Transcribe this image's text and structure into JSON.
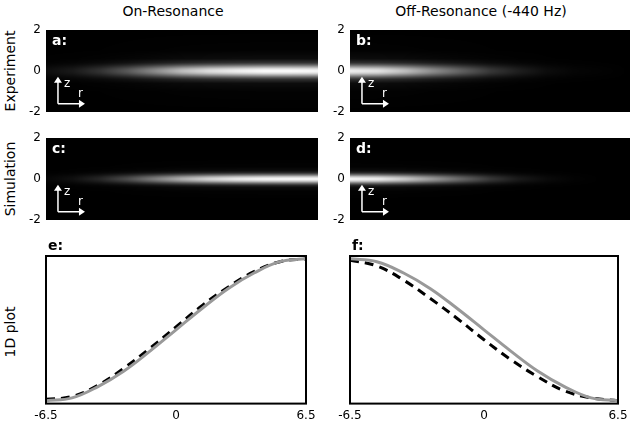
{
  "column_titles": [
    "On-Resonance",
    "Off-Resonance (-440 Hz)"
  ],
  "row_titles": [
    "Experiment",
    "Simulation",
    "1D plot"
  ],
  "chart_data": [
    {
      "type": "heatmap",
      "letter": "a:",
      "xlabel": "r",
      "ylabel": "z",
      "xlim": [
        -6.5,
        6.5
      ],
      "ylim": [
        -2,
        2
      ],
      "yticks": [
        -2,
        0,
        2
      ],
      "tick_labels": "y",
      "grid": false,
      "r_profile": {
        "r": [
          -6.5,
          -5.2,
          -3.9,
          -2.6,
          -1.3,
          0,
          1.3,
          2.6,
          3.9,
          5.2,
          6.5
        ],
        "intensity": [
          0.05,
          0.1,
          0.2,
          0.35,
          0.55,
          0.75,
          0.88,
          0.95,
          1,
          1,
          0.98
        ]
      },
      "z_profile": {
        "z": [
          -2,
          -1,
          -0.6,
          -0.4,
          -0.3,
          -0.2,
          -0.1,
          0,
          0.1,
          0.2,
          0.3,
          0.4,
          0.6,
          1,
          2
        ],
        "intensity": [
          0,
          0.01,
          0.05,
          0.2,
          0.4,
          0.66,
          0.9,
          1,
          0.9,
          0.66,
          0.4,
          0.2,
          0.05,
          0.01,
          0
        ]
      }
    },
    {
      "type": "heatmap",
      "letter": "b:",
      "xlabel": "r",
      "ylabel": "z",
      "xlim": [
        -6.5,
        6.5
      ],
      "ylim": [
        -2,
        2
      ],
      "yticks": [
        -2,
        0,
        2
      ],
      "tick_labels": "y",
      "grid": false,
      "r_profile": {
        "r": [
          -6.5,
          -5.2,
          -3.9,
          -2.6,
          -1.3,
          0,
          1.3,
          2.6,
          3.9,
          5.2,
          6.5
        ],
        "intensity": [
          0.95,
          0.9,
          0.75,
          0.55,
          0.38,
          0.22,
          0.12,
          0.05,
          0.02,
          0.01,
          0
        ]
      },
      "z_profile": {
        "z": [
          -2,
          -1,
          -0.6,
          -0.4,
          -0.3,
          -0.2,
          -0.1,
          0,
          0.1,
          0.2,
          0.3,
          0.4,
          0.6,
          1,
          2
        ],
        "intensity": [
          0,
          0.01,
          0.05,
          0.2,
          0.4,
          0.66,
          0.9,
          1,
          0.9,
          0.66,
          0.4,
          0.2,
          0.05,
          0.01,
          0
        ]
      }
    },
    {
      "type": "heatmap",
      "letter": "c:",
      "xlabel": "r",
      "ylabel": "z",
      "xlim": [
        -6.5,
        6.5
      ],
      "ylim": [
        -2,
        2
      ],
      "yticks": [
        -2,
        0,
        2
      ],
      "tick_labels": "y",
      "grid": false,
      "r_profile": {
        "r": [
          -6.5,
          -5.2,
          -3.9,
          -2.6,
          -1.3,
          0,
          1.3,
          2.6,
          3.9,
          5.2,
          6.5
        ],
        "intensity": [
          0.02,
          0.06,
          0.15,
          0.3,
          0.5,
          0.7,
          0.85,
          0.94,
          0.99,
          1,
          1
        ]
      },
      "z_profile": {
        "z": [
          -2,
          -1,
          -0.6,
          -0.4,
          -0.3,
          -0.2,
          -0.1,
          0,
          0.1,
          0.2,
          0.3,
          0.4,
          0.6,
          1,
          2
        ],
        "intensity": [
          0,
          0,
          0.01,
          0.05,
          0.17,
          0.46,
          0.82,
          1,
          0.82,
          0.46,
          0.17,
          0.05,
          0.01,
          0,
          0
        ]
      }
    },
    {
      "type": "heatmap",
      "letter": "d:",
      "xlabel": "r",
      "ylabel": "z",
      "xlim": [
        -6.5,
        6.5
      ],
      "ylim": [
        -2,
        2
      ],
      "yticks": [
        -2,
        0,
        2
      ],
      "tick_labels": "y",
      "grid": false,
      "r_profile": {
        "r": [
          -6.5,
          -5.2,
          -3.9,
          -2.6,
          -1.3,
          0,
          1.3,
          2.6,
          3.9,
          5.2,
          6.5
        ],
        "intensity": [
          1,
          0.95,
          0.8,
          0.6,
          0.4,
          0.22,
          0.1,
          0.04,
          0.01,
          0,
          0
        ]
      },
      "z_profile": {
        "z": [
          -2,
          -1,
          -0.6,
          -0.4,
          -0.3,
          -0.2,
          -0.1,
          0,
          0.1,
          0.2,
          0.3,
          0.4,
          0.6,
          1,
          2
        ],
        "intensity": [
          0,
          0,
          0.01,
          0.05,
          0.17,
          0.46,
          0.82,
          1,
          0.82,
          0.46,
          0.17,
          0.05,
          0.01,
          0,
          0
        ]
      }
    },
    {
      "type": "line",
      "letter": "e:",
      "x": [
        -6.5,
        -5.2,
        -3.9,
        -2.6,
        -1.3,
        0,
        1.3,
        2.6,
        3.9,
        5.2,
        6.5
      ],
      "xlim": [
        -6.5,
        6.5
      ],
      "xticks": [
        -6.5,
        0,
        6.5
      ],
      "ylim": [
        -0.02,
        1.02
      ],
      "tick_labels": "x",
      "grid": false,
      "series": [
        {
          "color": "#999999",
          "line_style": "solid",
          "values": [
            0,
            0.02,
            0.1,
            0.21,
            0.35,
            0.5,
            0.65,
            0.79,
            0.9,
            0.98,
            1
          ]
        },
        {
          "color": "#000000",
          "line_style": "dashed",
          "values": [
            0.01,
            0.03,
            0.11,
            0.23,
            0.37,
            0.52,
            0.67,
            0.8,
            0.91,
            0.98,
            1
          ]
        }
      ]
    },
    {
      "type": "line",
      "letter": "f:",
      "x": [
        -6.5,
        -5.2,
        -3.9,
        -2.6,
        -1.3,
        0,
        1.3,
        2.6,
        3.9,
        5.2,
        6.5
      ],
      "xlim": [
        -6.5,
        6.5
      ],
      "xticks": [
        -6.5,
        0,
        6.5
      ],
      "ylim": [
        -0.02,
        1.02
      ],
      "tick_labels": "x",
      "grid": false,
      "series": [
        {
          "color": "#999999",
          "line_style": "solid",
          "values": [
            1,
            0.98,
            0.9,
            0.79,
            0.65,
            0.5,
            0.35,
            0.21,
            0.1,
            0.02,
            0
          ]
        },
        {
          "color": "#000000",
          "line_style": "dashed",
          "values": [
            0.99,
            0.95,
            0.85,
            0.72,
            0.58,
            0.43,
            0.29,
            0.17,
            0.07,
            0.02,
            0
          ]
        }
      ]
    }
  ]
}
